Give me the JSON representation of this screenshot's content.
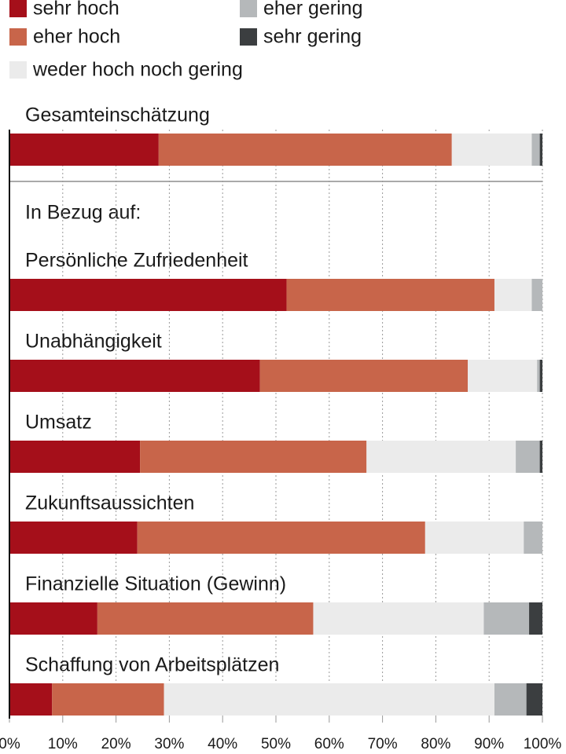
{
  "chart_data": {
    "type": "stacked-bar-horizontal",
    "annotation": "In Bezug auf:",
    "categories": [
      "Gesamteinschätzung",
      "Persönliche Zufriedenheit",
      "Unabhängigkeit",
      "Umsatz",
      "Zukunftsaussichten",
      "Finanzielle Situation (Gewinn)",
      "Schaffung von Arbeitsplätzen"
    ],
    "series": [
      {
        "name": "sehr hoch",
        "color": "#a50f1a",
        "values": [
          28,
          52,
          47,
          24.5,
          24,
          16.5,
          8
        ]
      },
      {
        "name": "eher hoch",
        "color": "#c8654a",
        "values": [
          55,
          39,
          39,
          42.5,
          54,
          40.5,
          21
        ]
      },
      {
        "name": "weder hoch noch gering",
        "color": "#ebebeb",
        "values": [
          15,
          7,
          13,
          28,
          18.5,
          32,
          62
        ]
      },
      {
        "name": "eher gering",
        "color": "#b5b8ba",
        "values": [
          1.5,
          2,
          0.5,
          4.5,
          3.5,
          8.5,
          6
        ]
      },
      {
        "name": "sehr gering",
        "color": "#3b3e40",
        "values": [
          0.5,
          0,
          0.5,
          0.5,
          0,
          2.5,
          3
        ]
      }
    ],
    "xlim": [
      0,
      100
    ],
    "xticks": [
      {
        "value": 0,
        "label": "0%"
      },
      {
        "value": 10,
        "label": "10%"
      },
      {
        "value": 20,
        "label": "20%"
      },
      {
        "value": 30,
        "label": "30%"
      },
      {
        "value": 40,
        "label": "40%"
      },
      {
        "value": 50,
        "label": "50%"
      },
      {
        "value": 60,
        "label": "60%"
      },
      {
        "value": 70,
        "label": "70%"
      },
      {
        "value": 80,
        "label": "80%"
      },
      {
        "value": 90,
        "label": "90%"
      },
      {
        "value": 100,
        "label": "100%"
      }
    ],
    "grid": true
  }
}
